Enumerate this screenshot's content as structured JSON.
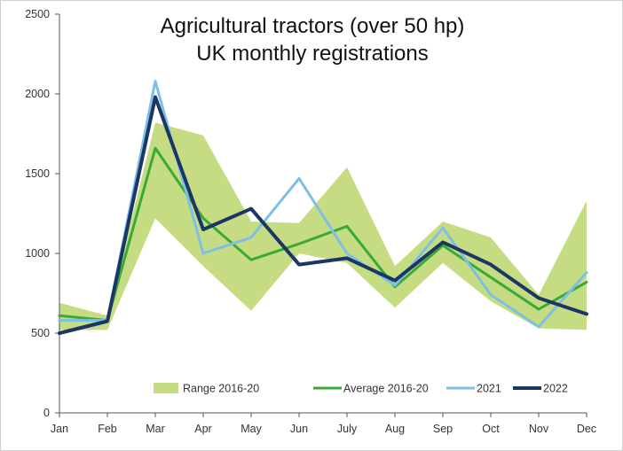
{
  "chart_data": {
    "type": "line",
    "title": "Agricultural tractors (over 50 hp)",
    "subtitle": "UK monthly registrations",
    "xlabel": "",
    "ylabel": "",
    "categories": [
      "Jan",
      "Feb",
      "Mar",
      "Apr",
      "May",
      "Jun",
      "July",
      "Aug",
      "Sep",
      "Oct",
      "Nov",
      "Dec"
    ],
    "ylim": [
      0,
      2500
    ],
    "yticks": [
      0,
      500,
      1000,
      1500,
      2000,
      2500
    ],
    "grid": false,
    "legend_position": "bottom",
    "range": {
      "name": "Range 2016-20",
      "color": "#c5dc83",
      "low": [
        520,
        520,
        1220,
        920,
        640,
        1000,
        940,
        660,
        940,
        700,
        530,
        520
      ],
      "high": [
        690,
        610,
        1820,
        1740,
        1200,
        1190,
        1540,
        920,
        1200,
        1100,
        740,
        1330
      ]
    },
    "series": [
      {
        "name": "Average 2016-20",
        "color": "#3aa935",
        "values": [
          610,
          580,
          1660,
          1220,
          960,
          1060,
          1170,
          790,
          1050,
          850,
          650,
          820
        ]
      },
      {
        "name": "2021",
        "color": "#7ebfe6",
        "values": [
          580,
          580,
          2080,
          1000,
          1100,
          1470,
          1000,
          800,
          1160,
          740,
          540,
          880
        ]
      },
      {
        "name": "2022",
        "color": "#1b3565",
        "values": [
          500,
          575,
          1980,
          1150,
          1280,
          930,
          970,
          830,
          1070,
          930,
          720,
          620
        ]
      }
    ]
  }
}
